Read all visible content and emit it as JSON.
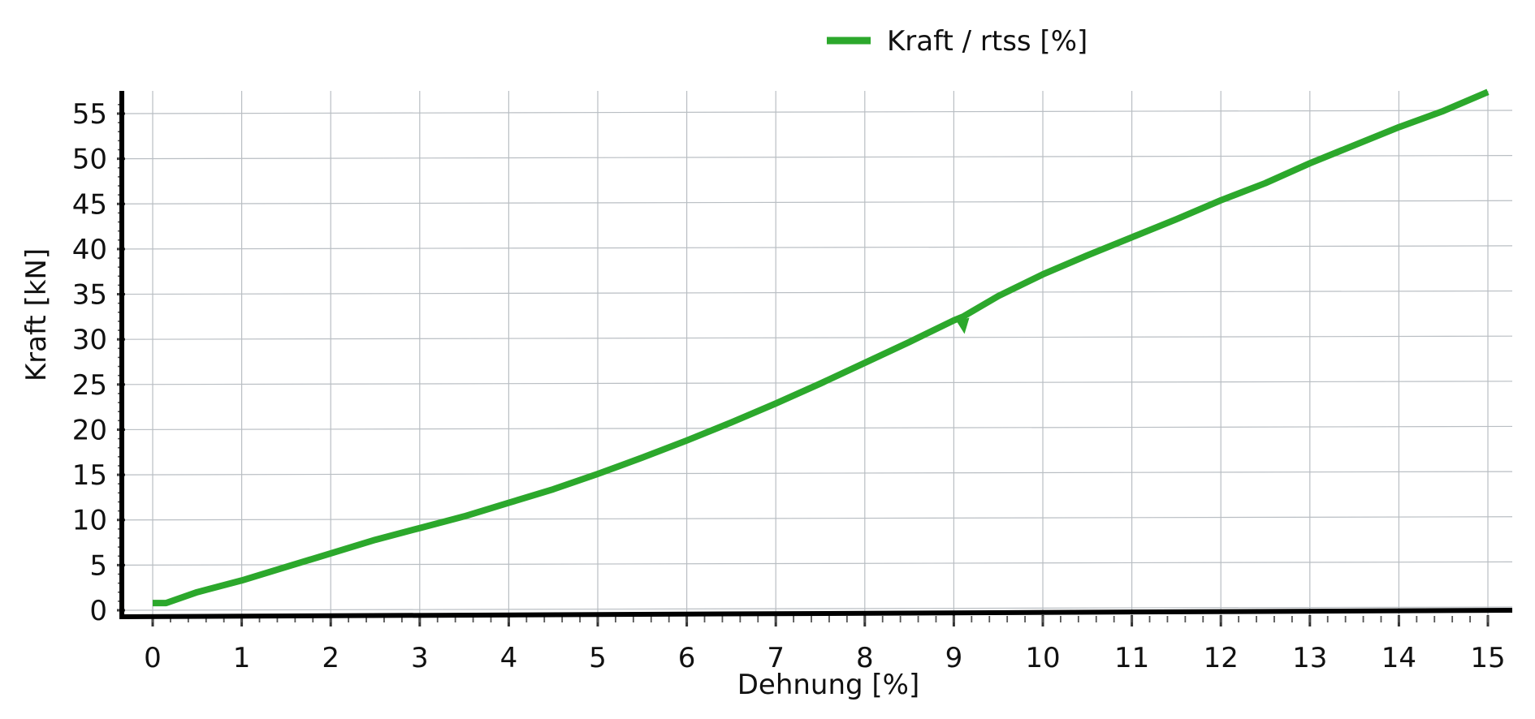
{
  "chart_data": {
    "type": "line",
    "xlabel": "Dehnung [%]",
    "ylabel": "Kraft [kN]",
    "xlim": [
      0,
      15
    ],
    "ylim": [
      0,
      55
    ],
    "x_ticks": [
      "0",
      "1",
      "2",
      "3",
      "4",
      "5",
      "6",
      "7",
      "8",
      "9",
      "10",
      "11",
      "12",
      "13",
      "14",
      "15"
    ],
    "y_ticks": [
      "0",
      "5",
      "10",
      "15",
      "20",
      "25",
      "30",
      "35",
      "40",
      "45",
      "50",
      "55"
    ],
    "grid": true,
    "legend": {
      "position": "top-center",
      "entries": [
        "Kraft / rtss [%]"
      ]
    },
    "series": [
      {
        "name": "Kraft / rtss [%]",
        "color": "#2ca82c",
        "x": [
          0,
          0.15,
          0.5,
          1,
          1.5,
          2,
          2.5,
          3,
          3.5,
          4,
          4.5,
          5,
          5.5,
          6,
          6.5,
          7,
          7.5,
          8,
          8.5,
          9,
          9.1,
          9.5,
          10,
          10.5,
          11,
          11.5,
          12,
          12.5,
          13,
          13.5,
          14,
          14.5,
          15
        ],
        "y": [
          0.8,
          0.8,
          2,
          3.3,
          4.8,
          6.3,
          7.8,
          9.1,
          10.4,
          11.9,
          13.4,
          15.1,
          16.9,
          18.8,
          20.8,
          22.9,
          25.1,
          27.4,
          29.7,
          32.1,
          32.5,
          34.8,
          37.2,
          39.3,
          41.3,
          43.3,
          45.4,
          47.3,
          49.5,
          51.5,
          53.5,
          55.3,
          57.4
        ]
      }
    ]
  }
}
